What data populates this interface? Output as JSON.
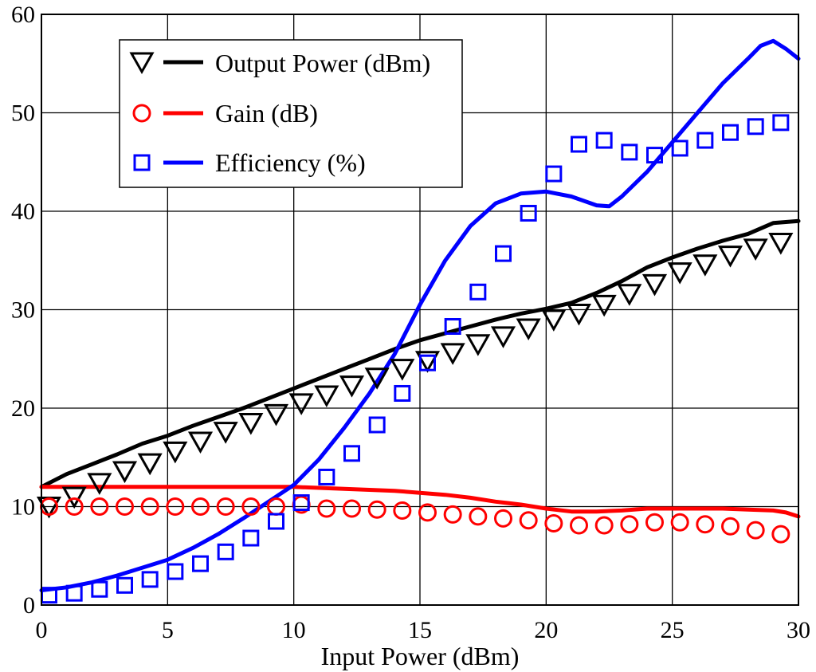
{
  "chart_data": {
    "type": "line",
    "title": "",
    "xlabel": "Input Power (dBm)",
    "ylabel": "",
    "xlim": [
      0,
      30
    ],
    "ylim": [
      0,
      60
    ],
    "xticks": [
      0,
      5,
      10,
      15,
      20,
      25,
      30
    ],
    "yticks": [
      0,
      10,
      20,
      30,
      40,
      50,
      60
    ],
    "xtick_labels": [
      "0",
      "5",
      "10",
      "15",
      "20",
      "25",
      "30"
    ],
    "ytick_labels": [
      "0",
      "10",
      "20",
      "30",
      "40",
      "50",
      "60"
    ],
    "grid": true,
    "legend_position": "top-left",
    "legend": [
      {
        "label": "Output Power (dBm)",
        "color": "#000000",
        "marker": "triangle-down"
      },
      {
        "label": "Gain (dB)",
        "color": "#ff0000",
        "marker": "circle"
      },
      {
        "label": "Efficiency (%)",
        "color": "#0000ff",
        "marker": "square"
      }
    ],
    "series": [
      {
        "name": "Output Power (dBm) simulated",
        "kind": "line",
        "color": "#000000",
        "x": [
          0,
          1,
          2,
          3,
          4,
          5,
          6,
          7,
          8,
          9,
          10,
          11,
          12,
          13,
          14,
          15,
          16,
          17,
          18,
          19,
          20,
          21,
          22,
          23,
          24,
          25,
          26,
          27,
          28,
          29,
          30
        ],
        "y": [
          12,
          13.3,
          14.3,
          15.3,
          16.4,
          17.2,
          18.2,
          19.1,
          20,
          21,
          22,
          23,
          24,
          25,
          26,
          26.9,
          27.6,
          28.3,
          29,
          29.6,
          30.1,
          30.7,
          31.7,
          32.9,
          34.3,
          35.3,
          36.2,
          37,
          37.7,
          38.8,
          39
        ]
      },
      {
        "name": "Gain (dB) simulated",
        "kind": "line",
        "color": "#ff0000",
        "x": [
          0,
          2,
          4,
          6,
          8,
          10,
          12,
          14,
          15,
          16,
          17,
          18,
          19,
          20,
          21,
          22,
          23,
          24,
          25,
          26,
          27,
          28,
          29,
          29.5,
          30
        ],
        "y": [
          12,
          12,
          12,
          12,
          12,
          12,
          11.8,
          11.6,
          11.4,
          11.2,
          10.9,
          10.5,
          10.2,
          9.8,
          9.5,
          9.5,
          9.6,
          9.8,
          9.8,
          9.8,
          9.8,
          9.7,
          9.6,
          9.4,
          9
        ]
      },
      {
        "name": "Efficiency (%) simulated",
        "kind": "line",
        "color": "#0000ff",
        "x": [
          0,
          1,
          2,
          3,
          4,
          5,
          6,
          7,
          8,
          9,
          10,
          11,
          12,
          13,
          14,
          15,
          16,
          17,
          18,
          19,
          20,
          21,
          22,
          22.5,
          23,
          24,
          25,
          26,
          27,
          28,
          28.5,
          29,
          29.5,
          30
        ],
        "y": [
          1.5,
          1.8,
          2.3,
          3,
          3.8,
          4.6,
          5.8,
          7.2,
          8.8,
          10.5,
          12.2,
          14.8,
          18,
          21.5,
          25.5,
          30.5,
          35,
          38.5,
          40.8,
          41.8,
          42,
          41.5,
          40.6,
          40.5,
          41.5,
          44,
          47,
          50,
          53,
          55.5,
          56.8,
          57.3,
          56.5,
          55.5
        ]
      },
      {
        "name": "Output Power (dBm) measured",
        "kind": "markers",
        "marker": "triangle-down",
        "color": "#000000",
        "x": [
          0.3,
          1.3,
          2.3,
          3.3,
          4.3,
          5.3,
          6.3,
          7.3,
          8.3,
          9.3,
          10.3,
          11.3,
          12.3,
          13.3,
          14.3,
          15.3,
          16.3,
          17.3,
          18.3,
          19.3,
          20.3,
          21.3,
          22.3,
          23.3,
          24.3,
          25.3,
          26.3,
          27.3,
          28.3,
          29.3
        ],
        "y": [
          10,
          11,
          12.4,
          13.6,
          14.4,
          15.6,
          16.6,
          17.6,
          18.5,
          19.4,
          20.5,
          21.3,
          22.3,
          23.1,
          24,
          24.8,
          25.6,
          26.5,
          27.3,
          28.1,
          29,
          29.6,
          30.5,
          31.6,
          32.6,
          33.8,
          34.6,
          35.5,
          36.2,
          36.8
        ]
      },
      {
        "name": "Gain (dB) measured",
        "kind": "markers",
        "marker": "circle",
        "color": "#ff0000",
        "x": [
          0.3,
          1.3,
          2.3,
          3.3,
          4.3,
          5.3,
          6.3,
          7.3,
          8.3,
          9.3,
          10.3,
          11.3,
          12.3,
          13.3,
          14.3,
          15.3,
          16.3,
          17.3,
          18.3,
          19.3,
          20.3,
          21.3,
          22.3,
          23.3,
          24.3,
          25.3,
          26.3,
          27.3,
          28.3,
          29.3
        ],
        "y": [
          10,
          10,
          10,
          10,
          10,
          10,
          10,
          10,
          10,
          10,
          10.2,
          9.8,
          9.8,
          9.7,
          9.6,
          9.4,
          9.2,
          9,
          8.8,
          8.6,
          8.3,
          8.1,
          8.1,
          8.2,
          8.4,
          8.4,
          8.2,
          8,
          7.6,
          7.2
        ]
      },
      {
        "name": "Efficiency (%) measured",
        "kind": "markers",
        "marker": "square",
        "color": "#0000ff",
        "x": [
          0.3,
          1.3,
          2.3,
          3.3,
          4.3,
          5.3,
          6.3,
          7.3,
          8.3,
          9.3,
          10.3,
          11.3,
          12.3,
          13.3,
          14.3,
          15.3,
          16.3,
          17.3,
          18.3,
          19.3,
          20.3,
          21.3,
          22.3,
          23.3,
          24.3,
          25.3,
          26.3,
          27.3,
          28.3,
          29.3
        ],
        "y": [
          1,
          1.2,
          1.6,
          2,
          2.6,
          3.4,
          4.2,
          5.4,
          6.8,
          8.5,
          10.4,
          13,
          15.4,
          18.3,
          21.5,
          24.6,
          28.3,
          31.8,
          35.7,
          39.8,
          43.8,
          46.8,
          47.2,
          46,
          45.7,
          46.4,
          47.2,
          48,
          48.6,
          49
        ]
      }
    ]
  }
}
